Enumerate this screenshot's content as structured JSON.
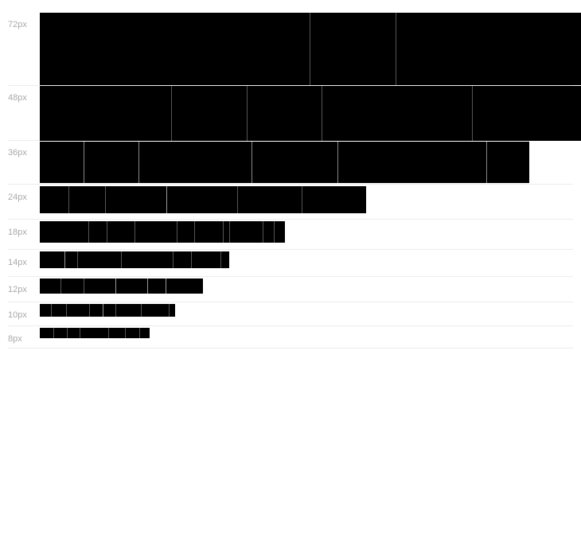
{
  "specimen": {
    "rows": [
      {
        "label": "72px"
      },
      {
        "label": "48px"
      },
      {
        "label": "36px"
      },
      {
        "label": "24px"
      },
      {
        "label": "18px"
      },
      {
        "label": "14px"
      },
      {
        "label": "12px"
      },
      {
        "label": "10px"
      },
      {
        "label": "8px"
      }
    ],
    "glyph_color": "#000000",
    "label_color": "#aaaaaa"
  }
}
